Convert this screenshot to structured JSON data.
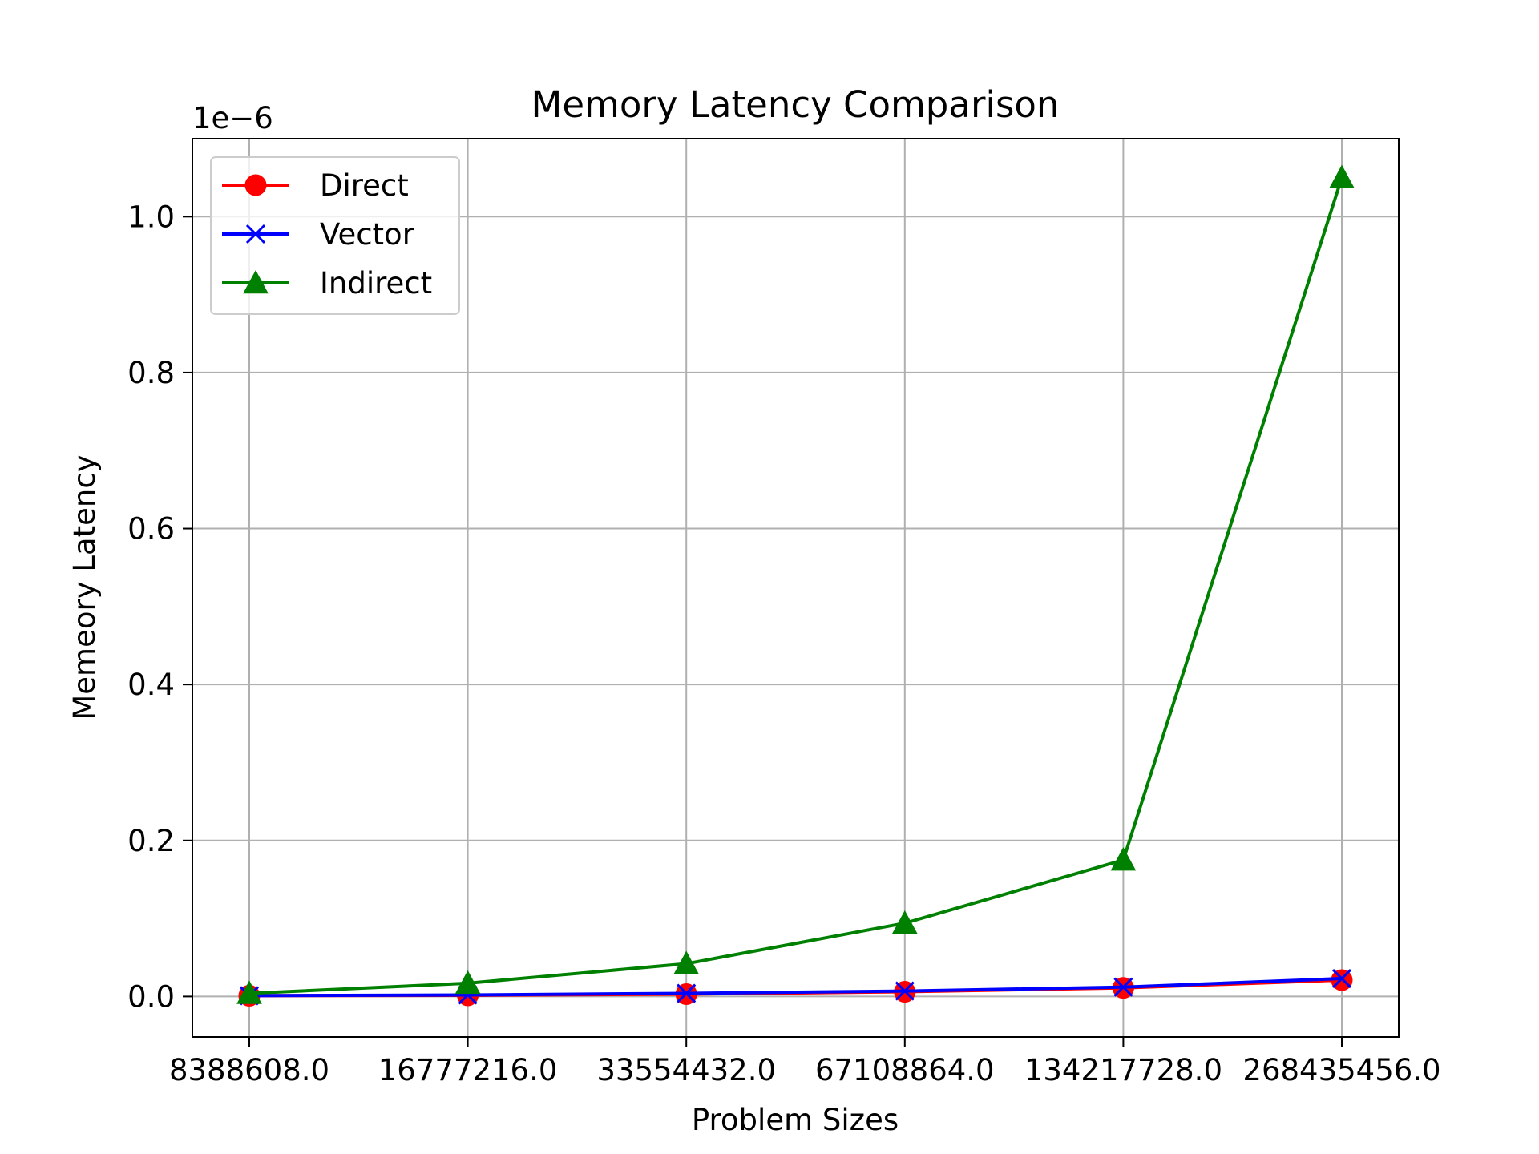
{
  "chart_data": {
    "type": "line",
    "title": "Memory Latency Comparison",
    "xlabel": "Problem Sizes",
    "ylabel": "Memeory Latency",
    "y_offset_label": "1e−6",
    "categories": [
      "8388608.0",
      "16777216.0",
      "33554432.0",
      "67108864.0",
      "134217728.0",
      "268435456.0"
    ],
    "yticks": [
      "0.0",
      "0.2",
      "0.4",
      "0.6",
      "0.8",
      "1.0"
    ],
    "ytick_values": [
      0.0,
      0.2,
      0.4,
      0.6,
      0.8,
      1.0
    ],
    "ylim": [
      -0.052,
      1.1
    ],
    "unit_scale": "1e-6",
    "grid": true,
    "legend_position": "upper-left",
    "series": [
      {
        "name": "Direct",
        "color": "#ff0000",
        "marker": "circle",
        "values": [
          0.001,
          0.0015,
          0.003,
          0.006,
          0.011,
          0.021
        ]
      },
      {
        "name": "Vector",
        "color": "#0000ff",
        "marker": "x",
        "values": [
          0.001,
          0.002,
          0.004,
          0.007,
          0.012,
          0.023
        ]
      },
      {
        "name": "Indirect",
        "color": "#008000",
        "marker": "triangle",
        "values": [
          0.004,
          0.017,
          0.042,
          0.094,
          0.175,
          1.05
        ]
      }
    ]
  }
}
